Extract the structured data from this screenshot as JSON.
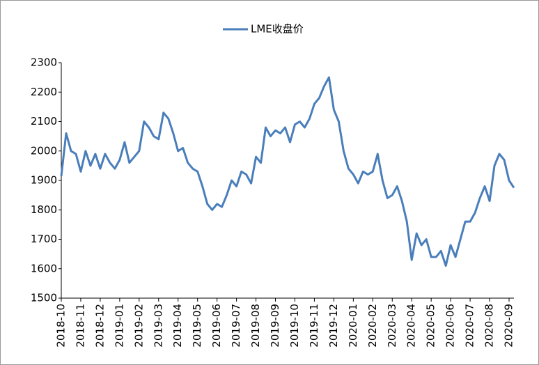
{
  "chart_data": {
    "type": "line",
    "categories": [
      "2018-10",
      null,
      null,
      null,
      "2018-11",
      null,
      null,
      null,
      "2018-12",
      null,
      null,
      null,
      "2019-01",
      null,
      null,
      null,
      "2019-02",
      null,
      null,
      null,
      "2019-03",
      null,
      null,
      null,
      "2019-04",
      null,
      null,
      null,
      "2019-05",
      null,
      null,
      null,
      "2019-06",
      null,
      null,
      null,
      "2019-07",
      null,
      null,
      null,
      "2019-08",
      null,
      null,
      null,
      "2019-09",
      null,
      null,
      null,
      "2019-10",
      null,
      null,
      null,
      "2019-11",
      null,
      null,
      null,
      "2019-12",
      null,
      null,
      null,
      "2020-01",
      null,
      null,
      null,
      "2020-02",
      null,
      null,
      null,
      "2020-03",
      null,
      null,
      null,
      "2020-04",
      null,
      null,
      null,
      "2020-05",
      null,
      null,
      null,
      "2020-06",
      null,
      null,
      null,
      "2020-07",
      null,
      null,
      null,
      "2020-08",
      null,
      null,
      null,
      "2020-09",
      null
    ],
    "series": [
      {
        "name": "LME收盘价",
        "color": "#4a7ebb",
        "values": [
          1915,
          2060,
          2000,
          1990,
          1930,
          2000,
          1950,
          1990,
          1940,
          1990,
          1960,
          1940,
          1970,
          2030,
          1960,
          1980,
          2000,
          2100,
          2080,
          2050,
          2040,
          2130,
          2110,
          2060,
          2000,
          2010,
          1960,
          1940,
          1930,
          1880,
          1820,
          1800,
          1820,
          1810,
          1850,
          1900,
          1880,
          1930,
          1920,
          1890,
          1980,
          1960,
          2080,
          2050,
          2070,
          2060,
          2080,
          2030,
          2090,
          2100,
          2080,
          2110,
          2160,
          2180,
          2220,
          2250,
          2140,
          2100,
          2000,
          1940,
          1920,
          1890,
          1930,
          1920,
          1930,
          1990,
          1900,
          1840,
          1850,
          1880,
          1830,
          1760,
          1630,
          1720,
          1680,
          1700,
          1640,
          1640,
          1660,
          1610,
          1680,
          1640,
          1700,
          1760,
          1760,
          1790,
          1840,
          1880,
          1830,
          1950,
          1990,
          1970,
          1900,
          1875
        ]
      }
    ],
    "ylim": [
      1500,
      2300
    ],
    "yticks": [
      1500,
      1600,
      1700,
      1800,
      1900,
      2000,
      2100,
      2200,
      2300
    ],
    "legend": "top"
  }
}
